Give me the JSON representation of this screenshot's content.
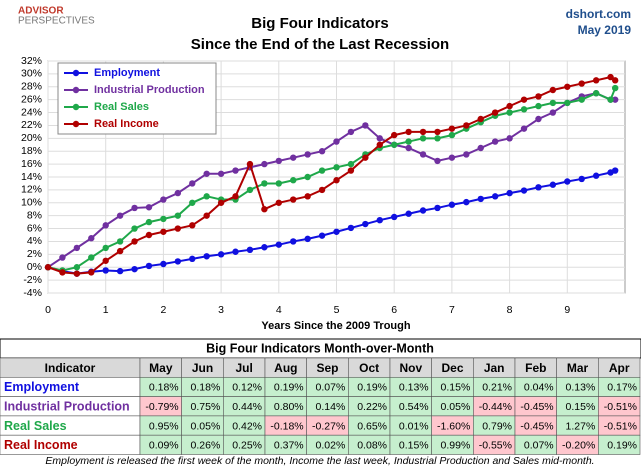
{
  "header": {
    "logo": [
      "ADVISOR",
      "PERSPECTIVES"
    ],
    "site": "dshort.com",
    "date": "May 2019"
  },
  "chart_data": {
    "type": "line",
    "title": "Big Four Indicators",
    "subtitle": "Since the End of the Last Recession",
    "x_label": "Years Since the 2009 Trough",
    "x": [
      0,
      0.25,
      0.5,
      0.75,
      1,
      1.25,
      1.5,
      1.75,
      2,
      2.25,
      2.5,
      2.75,
      3,
      3.25,
      3.5,
      3.75,
      4,
      4.25,
      4.5,
      4.75,
      5,
      5.25,
      5.5,
      5.75,
      6,
      6.25,
      6.5,
      6.75,
      7,
      7.25,
      7.5,
      7.75,
      8,
      8.25,
      8.5,
      8.75,
      9,
      9.25,
      9.5,
      9.75,
      9.83
    ],
    "xlim": [
      0,
      10
    ],
    "xticks": [
      0,
      1,
      2,
      3,
      4,
      5,
      6,
      7,
      8,
      9
    ],
    "ylim": [
      -4,
      32
    ],
    "yticks": [
      {
        "value": -4,
        "label": "-4%"
      },
      {
        "value": -2,
        "label": "-2%"
      },
      {
        "value": 0,
        "label": "0%"
      },
      {
        "value": 2,
        "label": "2%"
      },
      {
        "value": 4,
        "label": "4%"
      },
      {
        "value": 6,
        "label": "6%"
      },
      {
        "value": 8,
        "label": "8%"
      },
      {
        "value": 10,
        "label": "10%"
      },
      {
        "value": 12,
        "label": "12%"
      },
      {
        "value": 14,
        "label": "14%"
      },
      {
        "value": 16,
        "label": "16%"
      },
      {
        "value": 18,
        "label": "18%"
      },
      {
        "value": 20,
        "label": "20%"
      },
      {
        "value": 22,
        "label": "22%"
      },
      {
        "value": 24,
        "label": "24%"
      },
      {
        "value": 26,
        "label": "26%"
      },
      {
        "value": 28,
        "label": "28%"
      },
      {
        "value": 30,
        "label": "30%"
      },
      {
        "value": 32,
        "label": "32%"
      }
    ],
    "grid": true,
    "legend": "upper left",
    "series": [
      {
        "name": "Employment",
        "color": "#1010e0",
        "values": [
          0,
          -0.6,
          -1.0,
          -0.7,
          -0.5,
          -0.6,
          -0.3,
          0.2,
          0.5,
          0.9,
          1.3,
          1.7,
          2.0,
          2.4,
          2.7,
          3.1,
          3.5,
          4.0,
          4.4,
          4.9,
          5.5,
          6.1,
          6.7,
          7.3,
          7.8,
          8.3,
          8.8,
          9.2,
          9.7,
          10.1,
          10.6,
          11.0,
          11.5,
          11.9,
          12.4,
          12.8,
          13.3,
          13.7,
          14.2,
          14.7,
          15.0
        ]
      },
      {
        "name": "Industrial Production",
        "color": "#7030a0",
        "values": [
          0,
          1.5,
          3,
          4.5,
          6.5,
          8,
          9.2,
          9.3,
          10.5,
          11.5,
          13,
          14.5,
          14.5,
          15,
          15.5,
          16,
          16.5,
          17,
          17.5,
          18,
          19.5,
          21,
          22,
          20,
          19,
          18.5,
          17.5,
          16.5,
          17,
          17.5,
          18.5,
          19.5,
          20,
          21.5,
          23,
          24,
          25.5,
          26.5,
          27,
          26,
          26
        ]
      },
      {
        "name": "Real Sales",
        "color": "#1fa84a",
        "values": [
          0,
          -0.5,
          0,
          1.5,
          3,
          4,
          6,
          7,
          7.5,
          8,
          10,
          11,
          10.5,
          10.5,
          12,
          13,
          13,
          13.5,
          14,
          15,
          15.5,
          16,
          17.5,
          18.5,
          19,
          19.5,
          20,
          20,
          20.5,
          21.5,
          22.5,
          23.5,
          24,
          24.5,
          25,
          25.5,
          25.5,
          26,
          27,
          26,
          27.8
        ]
      },
      {
        "name": "Real Income",
        "color": "#b00000",
        "values": [
          0,
          -0.8,
          -1,
          -0.8,
          1,
          2.5,
          4,
          5,
          5.5,
          6,
          6.5,
          8,
          10,
          11,
          16,
          9,
          10,
          10.5,
          11,
          12,
          13.5,
          15,
          17,
          19,
          20.5,
          21,
          21,
          21,
          21.5,
          22,
          23,
          24,
          25,
          26,
          26.5,
          27.5,
          28,
          28.5,
          29,
          29.5,
          29
        ]
      }
    ]
  },
  "table": {
    "title": "Big Four Indicators Month-over-Month",
    "columns": [
      "Indicator",
      "May",
      "Jun",
      "Jul",
      "Aug",
      "Sep",
      "Oct",
      "Nov",
      "Dec",
      "Jan",
      "Feb",
      "Mar",
      "Apr"
    ],
    "rows": [
      [
        "Employment",
        "0.18%",
        "0.18%",
        "0.12%",
        "0.19%",
        "0.07%",
        "0.19%",
        "0.13%",
        "0.15%",
        "0.21%",
        "0.04%",
        "0.13%",
        "0.17%"
      ],
      [
        "Industrial Production",
        "-0.79%",
        "0.75%",
        "0.44%",
        "0.80%",
        "0.14%",
        "0.22%",
        "0.54%",
        "0.05%",
        "-0.44%",
        "-0.45%",
        "0.15%",
        "-0.51%"
      ],
      [
        "Real Sales",
        "0.95%",
        "0.05%",
        "0.42%",
        "-0.18%",
        "-0.27%",
        "0.65%",
        "0.01%",
        "-1.60%",
        "0.79%",
        "-0.45%",
        "1.27%",
        "-0.51%"
      ],
      [
        "Real Income",
        "0.09%",
        "0.26%",
        "0.25%",
        "0.37%",
        "0.02%",
        "0.08%",
        "0.15%",
        "0.99%",
        "-0.55%",
        "0.07%",
        "-0.20%",
        "0.19%"
      ]
    ]
  },
  "footnote": "Employment is released the first week of the month, Income the last week, Industrial Production and Sales mid-month."
}
